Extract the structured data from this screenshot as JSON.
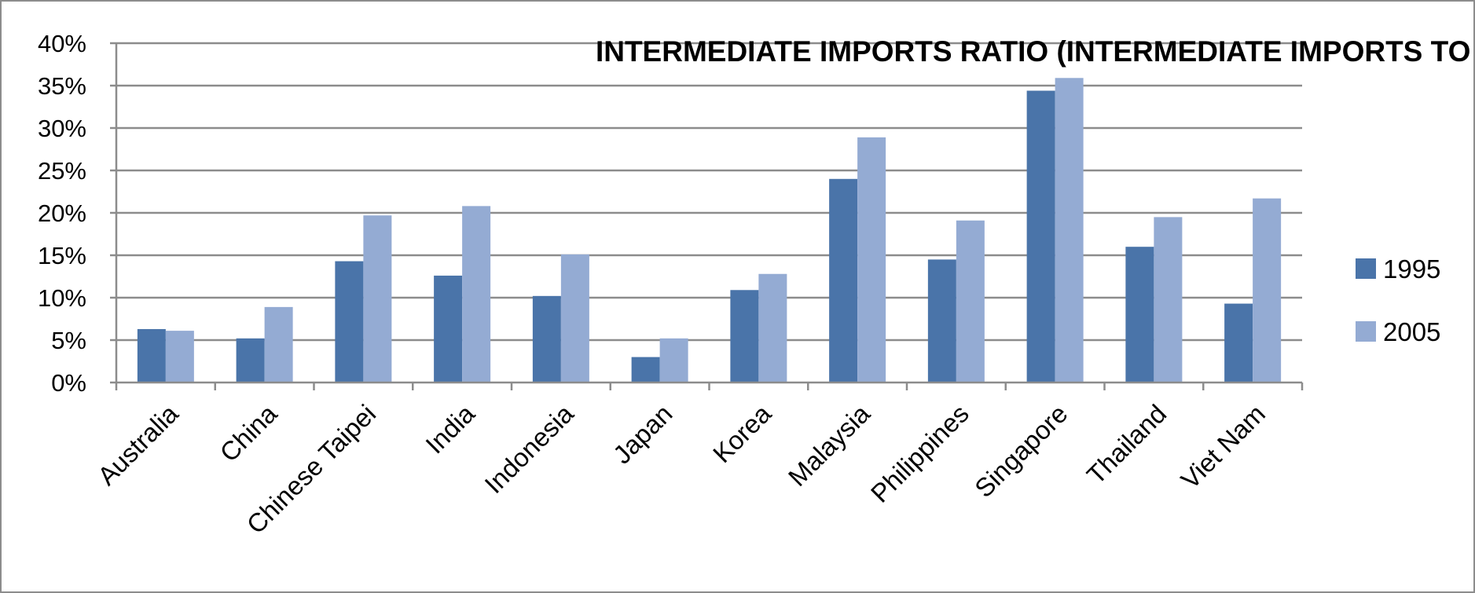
{
  "chart_data": {
    "type": "bar",
    "title": "INTERMEDIATE IMPORTS RATIO (INTERMEDIATE IMPORTS TO OUTPUT)",
    "xlabel": "",
    "ylabel": "",
    "categories": [
      "Australia",
      "China",
      "Chinese Taipei",
      "India",
      "Indonesia",
      "Japan",
      "Korea",
      "Malaysia",
      "Philippines",
      "Singapore",
      "Thailand",
      "Viet Nam"
    ],
    "series": [
      {
        "name": "1995",
        "color": "#4a74a9",
        "values": [
          6.3,
          5.2,
          14.3,
          12.6,
          10.2,
          3.0,
          10.9,
          24.0,
          14.5,
          34.4,
          16.0,
          9.3
        ]
      },
      {
        "name": "2005",
        "color": "#94abd3",
        "values": [
          6.1,
          8.9,
          19.7,
          20.8,
          15.1,
          5.2,
          12.8,
          28.9,
          19.1,
          35.9,
          19.5,
          21.7
        ]
      }
    ],
    "ylim": [
      0,
      40
    ],
    "yticks": [
      "0%",
      "5%",
      "10%",
      "15%",
      "20%",
      "25%",
      "30%",
      "35%",
      "40%"
    ],
    "grid": true,
    "legend_position": "right"
  }
}
